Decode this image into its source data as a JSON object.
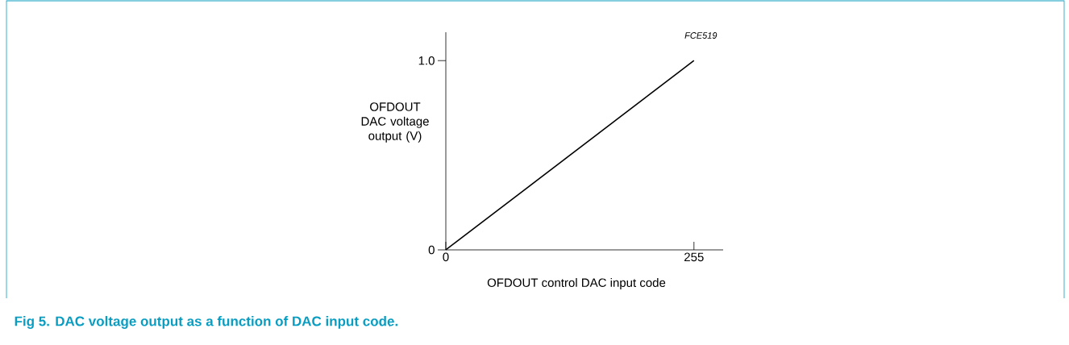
{
  "chart_data": {
    "type": "line",
    "title": "Fig 5. DAC voltage output as a function of DAC input code.",
    "xlabel": "OFDOUT control DAC input code",
    "ylabel": "OFDOUT DAC voltage output (V)",
    "annotations": [
      "FCE519"
    ],
    "x": [
      0,
      255
    ],
    "series": [
      {
        "color": "#000000",
        "values": [
          0,
          1.0
        ]
      }
    ],
    "xlim": [
      0,
      285
    ],
    "ylim": [
      0,
      1.15
    ],
    "xticks": [
      0,
      255
    ],
    "yticks": [
      0,
      {
        "value": 1.0,
        "label": "1.0"
      }
    ]
  }
}
